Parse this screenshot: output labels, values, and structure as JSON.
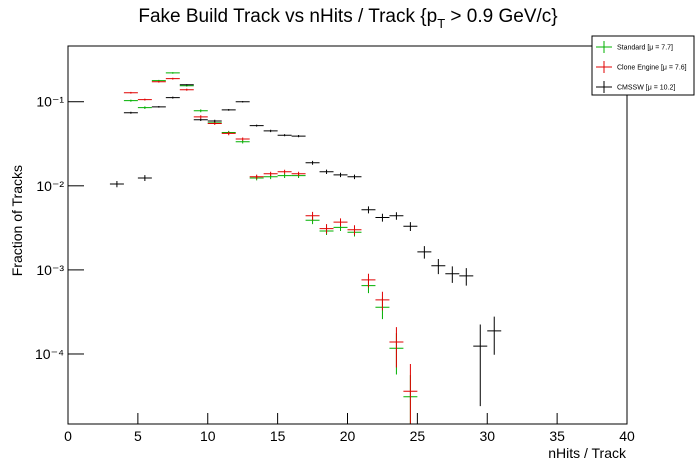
{
  "chart_data": {
    "type": "errorbar",
    "title": "Fake Build Track vs nHits / Track {p",
    "title_sub": "T",
    "title_end": " > 0.9 GeV/c}",
    "x_label": "nHits / Track",
    "y_label": "Fraction of Tracks",
    "log_y": true,
    "xlim": [
      0,
      40
    ],
    "ylim": [
      1.47e-05,
      0.46
    ],
    "xticks": [
      0,
      5,
      10,
      15,
      20,
      25,
      30,
      35,
      40
    ],
    "yticks": [
      {
        "value": 0.0001,
        "label": "10⁻⁴"
      },
      {
        "value": 0.001,
        "label": "10⁻³"
      },
      {
        "value": 0.01,
        "label": "10⁻²"
      },
      {
        "value": 0.1,
        "label": "10⁻¹"
      }
    ],
    "bin_width": 1,
    "legend_position": "upper right",
    "series": [
      {
        "name": "Standard  [μ =  7.7]",
        "color": "#00b000",
        "x": [
          4.5,
          5.5,
          6.5,
          7.5,
          8.5,
          9.5,
          10.5,
          11.5,
          12.5,
          13.5,
          14.5,
          15.5,
          16.5,
          17.5,
          18.5,
          19.5,
          20.5,
          21.5,
          22.5,
          23.5,
          24.5
        ],
        "values": [
          0.103,
          0.085,
          0.178,
          0.22,
          0.155,
          0.078,
          0.056,
          0.043,
          0.0334,
          0.0124,
          0.0128,
          0.0132,
          0.0132,
          0.0039,
          0.0029,
          0.0032,
          0.0028,
          0.00065,
          0.00036,
          0.000117,
          3.1e-05
        ],
        "errors": [
          0.003,
          0.003,
          0.004,
          0.005,
          0.004,
          0.003,
          0.002,
          0.002,
          0.0015,
          0.0008,
          0.0008,
          0.0008,
          0.0008,
          0.0004,
          0.0003,
          0.0003,
          0.0003,
          0.00012,
          0.0001,
          6e-05,
          2.5e-05
        ]
      },
      {
        "name": "Clone Engine  [μ =  7.6]",
        "color": "#e00000",
        "x": [
          4.5,
          5.5,
          6.5,
          7.5,
          8.5,
          9.5,
          10.5,
          11.5,
          12.5,
          13.5,
          14.5,
          15.5,
          16.5,
          17.5,
          18.5,
          19.5,
          20.5,
          21.5,
          22.5,
          23.5,
          24.5
        ],
        "values": [
          0.128,
          0.106,
          0.173,
          0.188,
          0.139,
          0.066,
          0.055,
          0.042,
          0.036,
          0.0128,
          0.0139,
          0.0147,
          0.0139,
          0.0044,
          0.0031,
          0.0037,
          0.003,
          0.00076,
          0.00044,
          0.000139,
          3.6e-05
        ],
        "errors": [
          0.003,
          0.003,
          0.004,
          0.005,
          0.004,
          0.003,
          0.002,
          0.002,
          0.0015,
          0.0008,
          0.0008,
          0.0008,
          0.0008,
          0.0005,
          0.0004,
          0.0004,
          0.0004,
          0.00014,
          0.00011,
          7e-05,
          4e-05
        ]
      },
      {
        "name": "CMSSW  [μ = 10.2]",
        "color": "#000000",
        "x": [
          3.5,
          4.5,
          5.5,
          6.5,
          7.5,
          8.5,
          9.5,
          10.5,
          11.5,
          12.5,
          13.5,
          14.5,
          15.5,
          16.5,
          17.5,
          18.5,
          19.5,
          20.5,
          21.5,
          22.5,
          23.5,
          24.5,
          25.5,
          26.5,
          27.5,
          28.5,
          29.5,
          30.5
        ],
        "values": [
          0.0105,
          0.074,
          0.0124,
          0.087,
          0.112,
          0.159,
          0.061,
          0.059,
          0.08,
          0.1,
          0.052,
          0.045,
          0.04,
          0.039,
          0.0188,
          0.0147,
          0.0135,
          0.0128,
          0.0052,
          0.0042,
          0.0044,
          0.0033,
          0.00164,
          0.00112,
          0.0009,
          0.00085,
          0.000124,
          0.000188
        ],
        "errors": [
          0.0009,
          0.002,
          0.001,
          0.002,
          0.003,
          0.003,
          0.002,
          0.002,
          0.002,
          0.002,
          0.0015,
          0.0015,
          0.0012,
          0.0012,
          0.001,
          0.0009,
          0.0008,
          0.0008,
          0.0005,
          0.00045,
          0.00045,
          0.0004,
          0.00028,
          0.00023,
          0.0002,
          0.0002,
          0.0001,
          9e-05
        ]
      }
    ]
  }
}
